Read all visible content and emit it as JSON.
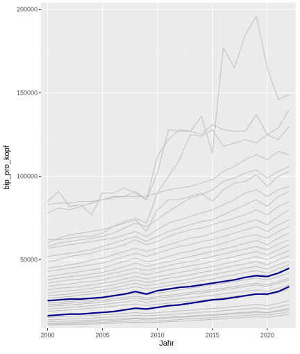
{
  "chart_data": {
    "type": "line",
    "title": "",
    "xlabel": "Jahr",
    "ylabel": "bip_pro_kopf",
    "xlim": [
      1999.4,
      2022.6
    ],
    "ylim": [
      9000,
      204000
    ],
    "x_ticks": [
      2000,
      2005,
      2010,
      2015,
      2020
    ],
    "x_tick_labels": [
      "2000",
      "2005",
      "2010",
      "2015",
      "2020"
    ],
    "y_ticks": [
      50000,
      100000,
      150000,
      200000
    ],
    "y_tick_labels": [
      "50000",
      "100000",
      "150000",
      "200000"
    ],
    "grid": true,
    "legend": "none",
    "colors": {
      "panel": "#EBEBEB",
      "grid_major": "#FFFFFF",
      "grid_minor": "#F2F2F2",
      "background_series": "#BEBEBE",
      "highlight_series": "#00008B",
      "axis_text": "#4D4D4D"
    },
    "x": [
      2000,
      2001,
      2002,
      2003,
      2004,
      2005,
      2006,
      2007,
      2008,
      2009,
      2010,
      2011,
      2012,
      2013,
      2014,
      2015,
      2016,
      2017,
      2018,
      2019,
      2020,
      2021,
      2022
    ],
    "series": [
      {
        "values": [
          85000,
          91000,
          82000,
          83000,
          77000,
          90000,
          90000,
          93000,
          90000,
          86000,
          112000,
          122000,
          128000,
          127000,
          136000,
          114000,
          177000,
          165000,
          185000,
          196000,
          165000,
          146000,
          149000
        ]
      },
      {
        "values": [
          78000,
          81000,
          80000,
          82000,
          84000,
          86000,
          88000,
          88000,
          91000,
          86000,
          102000,
          128000,
          127000,
          127000,
          125000,
          131000,
          128000,
          127000,
          127000,
          137000,
          125000,
          129000,
          140000
        ]
      },
      {
        "values": [
          60000,
          63000,
          65000,
          66000,
          67000,
          68000,
          70000,
          73000,
          75000,
          72000,
          90000,
          100000,
          110000,
          125000,
          124000,
          128000,
          118000,
          120000,
          122000,
          120000,
          125000,
          122000,
          130000
        ]
      },
      {
        "values": [
          83000,
          84000,
          84000,
          85000,
          85000,
          86000,
          87000,
          88000,
          88000,
          88000,
          90000,
          92000,
          93000,
          94000,
          96000,
          98000,
          103000,
          106000,
          110000,
          113000,
          110000,
          115000,
          113000
        ]
      },
      {
        "values": [
          58000,
          60000,
          61000,
          62000,
          63000,
          64000,
          66000,
          69000,
          72000,
          70000,
          74000,
          79000,
          83000,
          87000,
          89000,
          92000,
          97000,
          99000,
          102000,
          104000,
          99000,
          103000,
          106000
        ]
      },
      {
        "values": [
          62000,
          62000,
          63000,
          64000,
          64000,
          66000,
          70000,
          72000,
          74000,
          67000,
          80000,
          86000,
          86000,
          88000,
          90000,
          85000,
          92000,
          96000,
          97000,
          101000,
          94000,
          100000,
          103000
        ]
      },
      {
        "values": [
          57000,
          58000,
          59000,
          60000,
          61000,
          62000,
          63000,
          65000,
          67000,
          64000,
          68000,
          72000,
          74000,
          76000,
          78000,
          80000,
          83000,
          86000,
          90000,
          92000,
          88000,
          92000,
          94000
        ]
      },
      {
        "values": [
          52000,
          53000,
          54000,
          55000,
          56000,
          58000,
          60000,
          62000,
          64000,
          61000,
          64000,
          67000,
          69000,
          71000,
          73000,
          74000,
          77000,
          80000,
          83000,
          86000,
          82000,
          88000,
          91000
        ]
      },
      {
        "values": [
          49000,
          50000,
          52000,
          53000,
          54000,
          56000,
          57000,
          59000,
          62000,
          59000,
          61000,
          64000,
          66000,
          68000,
          69000,
          71000,
          73000,
          75000,
          77000,
          80000,
          77000,
          82000,
          85000
        ]
      },
      {
        "values": [
          45000,
          46000,
          47000,
          48000,
          50000,
          51000,
          53000,
          55000,
          57000,
          55000,
          57000,
          59000,
          61000,
          63000,
          64000,
          66000,
          68000,
          70000,
          72000,
          74000,
          71000,
          76000,
          80000
        ]
      },
      {
        "values": [
          43000,
          44000,
          45000,
          46000,
          47000,
          48000,
          50000,
          52000,
          54000,
          52000,
          54000,
          56000,
          58000,
          59000,
          61000,
          62000,
          64000,
          66000,
          68000,
          70000,
          67000,
          71000,
          74000
        ]
      },
      {
        "values": [
          40000,
          41000,
          42000,
          43000,
          44000,
          45000,
          47000,
          49000,
          51000,
          49000,
          50000,
          52000,
          54000,
          55000,
          57000,
          58000,
          60000,
          62000,
          64000,
          65000,
          63000,
          67000,
          70000
        ]
      },
      {
        "values": [
          38000,
          39000,
          40000,
          40500,
          41500,
          42500,
          44000,
          46000,
          48000,
          46000,
          47500,
          49000,
          50500,
          52000,
          53500,
          55000,
          56500,
          58000,
          60000,
          61500,
          59000,
          63000,
          66000
        ]
      },
      {
        "values": [
          36000,
          37000,
          38000,
          38500,
          39500,
          40500,
          42000,
          43500,
          45000,
          43500,
          45000,
          46500,
          48000,
          49000,
          50500,
          52000,
          53500,
          55000,
          56500,
          58000,
          56000,
          59500,
          62000
        ]
      },
      {
        "values": [
          34000,
          35000,
          35500,
          36500,
          37000,
          38000,
          39500,
          41000,
          42500,
          41000,
          42500,
          44000,
          45000,
          46500,
          47500,
          49000,
          50500,
          52000,
          53500,
          55000,
          53000,
          56000,
          59000
        ]
      },
      {
        "values": [
          32000,
          33000,
          33500,
          34000,
          35000,
          36000,
          37000,
          38500,
          40000,
          38500,
          40000,
          41000,
          42500,
          43500,
          45000,
          46000,
          47500,
          49000,
          50500,
          52000,
          50000,
          53000,
          55500
        ]
      },
      {
        "values": [
          30000,
          31000,
          31500,
          32000,
          33000,
          34000,
          35000,
          36500,
          38000,
          36500,
          37500,
          39000,
          40000,
          41000,
          42500,
          43500,
          45000,
          46500,
          47500,
          49000,
          47000,
          50000,
          52500
        ]
      },
      {
        "values": [
          28500,
          29000,
          29500,
          30500,
          31000,
          32000,
          33000,
          34500,
          36000,
          34500,
          35500,
          36500,
          37500,
          38500,
          40000,
          41000,
          42500,
          43500,
          45000,
          46000,
          44500,
          47000,
          49500
        ]
      },
      {
        "values": [
          27000,
          27500,
          28000,
          29000,
          29500,
          30500,
          31500,
          32500,
          34000,
          32500,
          33500,
          34500,
          35500,
          36500,
          37500,
          38500,
          40000,
          41000,
          42500,
          43500,
          42000,
          44500,
          47000
        ]
      },
      {
        "values": [
          24000,
          24500,
          25000,
          25500,
          26000,
          27000,
          28000,
          29000,
          30000,
          29000,
          30000,
          31000,
          32000,
          33000,
          34000,
          35000,
          36000,
          37000,
          38000,
          39000,
          38000,
          40000,
          42000
        ]
      },
      {
        "values": [
          23000,
          23500,
          24000,
          24500,
          25000,
          25800,
          26600,
          27400,
          28200,
          27200,
          28000,
          28800,
          29600,
          30400,
          31200,
          32000,
          33000,
          34000,
          35000,
          36000,
          35000,
          37000,
          39000
        ]
      },
      {
        "values": [
          22000,
          22500,
          23000,
          23500,
          24000,
          24800,
          25600,
          26400,
          27200,
          26200,
          27000,
          27800,
          28600,
          29400,
          30200,
          31000,
          32000,
          33000,
          34000,
          35000,
          34000,
          36000,
          38000
        ]
      },
      {
        "values": [
          20500,
          21000,
          21500,
          22000,
          22500,
          23200,
          24000,
          24800,
          25500,
          24600,
          25300,
          26000,
          26700,
          27400,
          28100,
          28800,
          29600,
          30400,
          31200,
          32000,
          31200,
          33000,
          35000
        ]
      },
      {
        "values": [
          19000,
          19500,
          20000,
          20500,
          21000,
          21600,
          22200,
          22900,
          23500,
          22700,
          23300,
          24000,
          24600,
          25200,
          25800,
          26500,
          27200,
          28000,
          28800,
          29600,
          28800,
          30500,
          32500
        ]
      },
      {
        "values": [
          15500,
          15800,
          16000,
          16300,
          16600,
          17000,
          17400,
          17900,
          18400,
          17900,
          18400,
          18900,
          19400,
          19900,
          20400,
          20900,
          21400,
          22000,
          22600,
          23200,
          22500,
          24000,
          25500
        ]
      },
      {
        "values": [
          14000,
          14200,
          14500,
          14800,
          15100,
          15500,
          15900,
          16300,
          16800,
          16400,
          16800,
          17200,
          17700,
          18100,
          18600,
          19000,
          19500,
          20000,
          20600,
          21100,
          20500,
          21800,
          23200
        ]
      },
      {
        "values": [
          13000,
          13100,
          13300,
          13500,
          13800,
          14100,
          14400,
          14800,
          15200,
          14800,
          15200,
          15600,
          16000,
          16400,
          16800,
          17200,
          17600,
          18100,
          18600,
          19100,
          18600,
          19700,
          21000
        ]
      },
      {
        "values": [
          11500,
          11600,
          11800,
          12000,
          12200,
          12500,
          12800,
          13100,
          13500,
          13200,
          13500,
          13800,
          14200,
          14600,
          15000,
          15400,
          15800,
          16200,
          16700,
          17200,
          16800,
          17800,
          19000
        ]
      },
      {
        "values": [
          11000,
          11100,
          11200,
          11300,
          11500,
          11700,
          12000,
          12300,
          12600,
          12300,
          12600,
          12900,
          13200,
          13500,
          13900,
          14300,
          14700,
          15100,
          15500,
          15900,
          15500,
          16400,
          17500
        ]
      },
      {
        "values": [
          12000,
          12200,
          12400,
          12700,
          13000,
          13400,
          13800,
          14200,
          14700,
          14300,
          14700,
          15100,
          15500,
          15900,
          16300,
          16700,
          17100,
          17600,
          18100,
          18600,
          18100,
          19100,
          20300
        ]
      }
    ],
    "highlight_series": [
      {
        "values": [
          25500,
          26000,
          26500,
          26500,
          27000,
          27500,
          28500,
          29500,
          31000,
          29500,
          31500,
          32500,
          33500,
          34000,
          35000,
          36000,
          37000,
          38000,
          39500,
          40500,
          40000,
          42000,
          45000
        ]
      },
      {
        "values": [
          16500,
          17000,
          17500,
          17500,
          18000,
          18500,
          19000,
          20000,
          21000,
          20500,
          21500,
          22500,
          23000,
          24000,
          25000,
          26000,
          26500,
          27500,
          28500,
          29500,
          29500,
          31000,
          34000
        ]
      }
    ]
  }
}
